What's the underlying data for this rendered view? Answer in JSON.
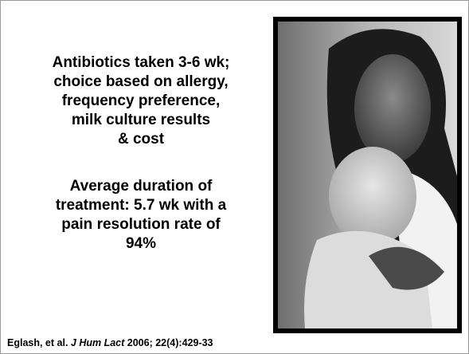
{
  "blocks": [
    {
      "lines": [
        "Antibiotics taken 3-6 wk;",
        "choice based on allergy,",
        "frequency preference,",
        "milk culture results",
        "& cost"
      ]
    },
    {
      "lines": [
        "Average duration of",
        "treatment: 5.7 wk with a",
        "pain resolution rate of",
        "94%"
      ]
    }
  ],
  "citation": {
    "authors": "Eglash, et al.",
    "journal": "J Hum Lact",
    "details": "2006; 22(4):429-33"
  }
}
